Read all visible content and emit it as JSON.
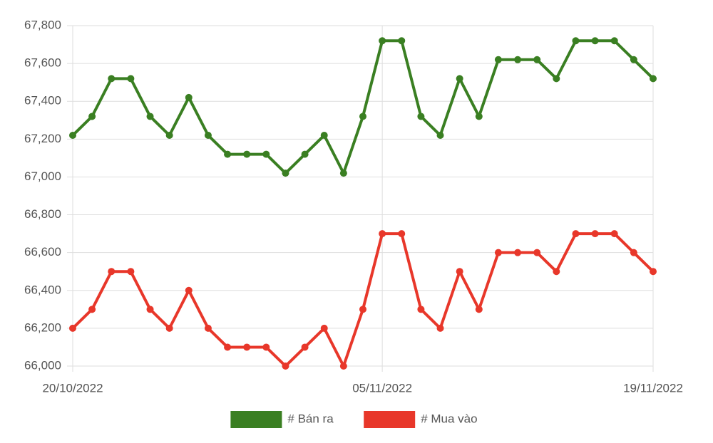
{
  "chart_data": {
    "type": "line",
    "categories": [
      "20/10/2022",
      null,
      null,
      null,
      null,
      null,
      null,
      null,
      null,
      null,
      null,
      null,
      null,
      null,
      null,
      null,
      "05/11/2022",
      null,
      null,
      null,
      null,
      null,
      null,
      null,
      null,
      null,
      null,
      null,
      null,
      null,
      "19/11/2022"
    ],
    "series": [
      {
        "name": "# Bán ra",
        "color": "#3a7f22",
        "values": [
          67220,
          67320,
          67520,
          67520,
          67320,
          67220,
          67420,
          67220,
          67120,
          67120,
          67120,
          67020,
          67120,
          67220,
          67020,
          67320,
          67720,
          67720,
          67320,
          67220,
          67520,
          67320,
          67620,
          67620,
          67620,
          67520,
          67720,
          67720,
          67720,
          67620,
          67520
        ]
      },
      {
        "name": "# Mua vào",
        "color": "#e8372a",
        "values": [
          66200,
          66300,
          66500,
          66500,
          66300,
          66200,
          66400,
          66200,
          66100,
          66100,
          66100,
          66000,
          66100,
          66200,
          66000,
          66300,
          66700,
          66700,
          66300,
          66200,
          66500,
          66300,
          66600,
          66600,
          66600,
          66500,
          66700,
          66700,
          66700,
          66600,
          66500
        ]
      }
    ],
    "ylim": [
      66000,
      67800
    ],
    "yticks": [
      {
        "value": 66000,
        "label": "66,000"
      },
      {
        "value": 66200,
        "label": "66,200"
      },
      {
        "value": 66400,
        "label": "66,400"
      },
      {
        "value": 66600,
        "label": "66,600"
      },
      {
        "value": 66800,
        "label": "66,800"
      },
      {
        "value": 67000,
        "label": "67,000"
      },
      {
        "value": 67200,
        "label": "67,200"
      },
      {
        "value": 67400,
        "label": "67,400"
      },
      {
        "value": 67600,
        "label": "67,600"
      },
      {
        "value": 67800,
        "label": "67,800"
      }
    ],
    "grid": true,
    "legend": "bottom"
  }
}
